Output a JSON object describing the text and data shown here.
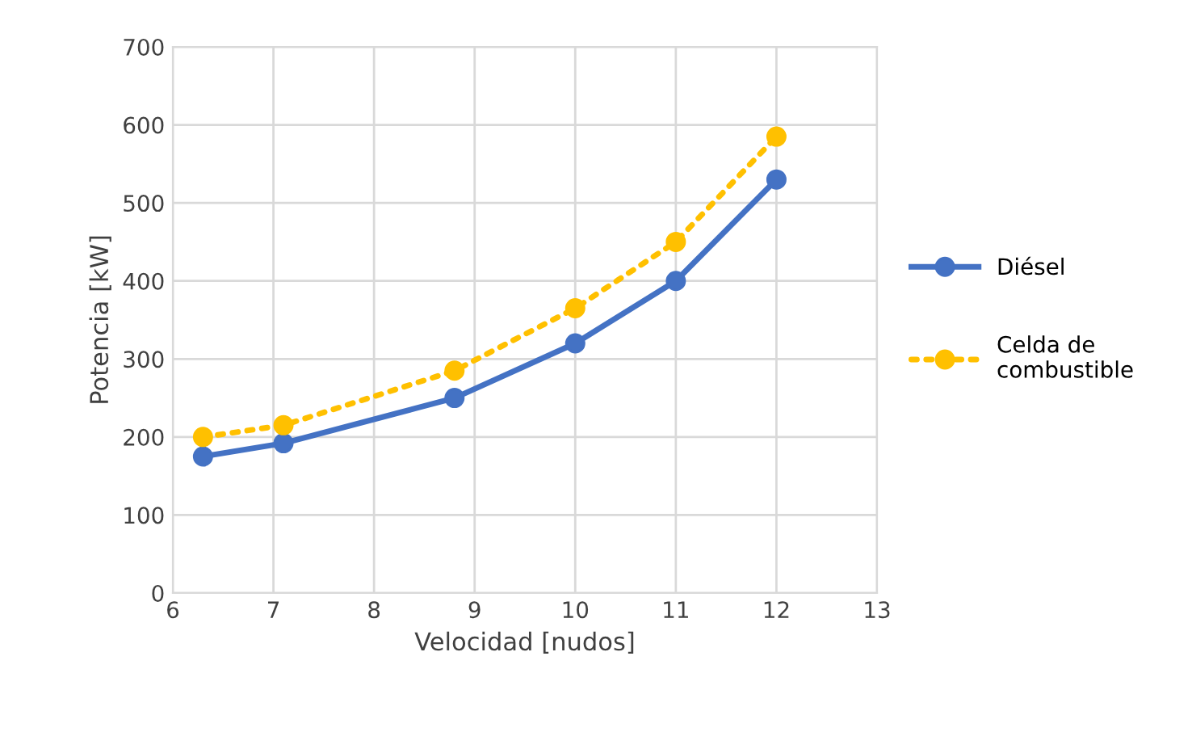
{
  "chart_data": {
    "type": "line",
    "xlabel": "Velocidad [nudos]",
    "ylabel": "Potencia [kW]",
    "xlim": [
      6,
      13
    ],
    "xticks": [
      6,
      7,
      8,
      9,
      10,
      11,
      12,
      13
    ],
    "ylim": [
      0,
      700
    ],
    "yticks": [
      0,
      100,
      200,
      300,
      400,
      500,
      600,
      700
    ],
    "grid": true,
    "legend": "right",
    "marker": "circle",
    "series": [
      {
        "name": "Diésel",
        "color": "#4472c4",
        "line_style": "solid",
        "x": [
          6.3,
          7.1,
          8.8,
          10,
          11,
          12
        ],
        "values": [
          175,
          192,
          250,
          320,
          400,
          530
        ]
      },
      {
        "name": "Celda de\ncombustible",
        "color": "#ffc000",
        "line_style": "dotted",
        "x": [
          6.3,
          7.1,
          8.8,
          10,
          11,
          12
        ],
        "values": [
          200,
          215,
          285,
          365,
          450,
          585
        ]
      }
    ]
  }
}
